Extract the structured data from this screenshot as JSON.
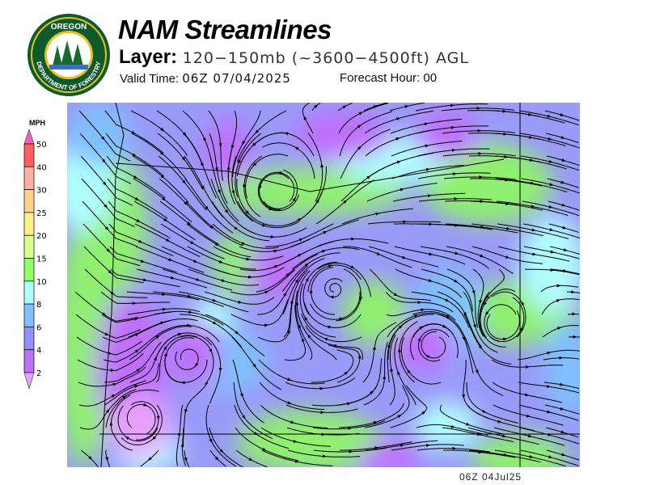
{
  "header": {
    "title": "NAM Streamlines",
    "layer_label": "Layer:",
    "layer_value": "120−150mb (~3600−4500ft) AGL",
    "valid_label": "Valid Time:",
    "valid_value": "06Z 07/04/2025",
    "forecast_label": "Forecast Hour:",
    "forecast_value": "00"
  },
  "logo": {
    "top_text": "OREGON",
    "bottom_text": "DEPARTMENT OF FORESTRY"
  },
  "legend": {
    "unit": "MPH",
    "ticks": [
      "50",
      "40",
      "30",
      "25",
      "20",
      "15",
      "10",
      "8",
      "6",
      "4",
      "2"
    ],
    "colors": [
      "#ff6060",
      "#ffb0a0",
      "#ffd090",
      "#fff088",
      "#d8ff90",
      "#90ff68",
      "#b0ffff",
      "#80c0ff",
      "#9090ff",
      "#c070ff"
    ],
    "over_color": "#ff60c0",
    "under_color": "#e8a0ff"
  },
  "footer": {
    "timestamp": "06Z 04Jul25"
  }
}
